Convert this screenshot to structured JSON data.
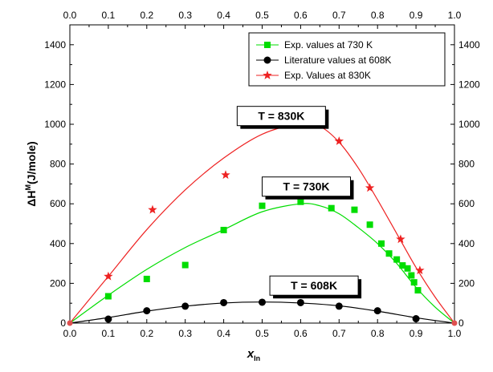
{
  "chart_data": {
    "type": "scatter",
    "title": "",
    "xlabel": "x",
    "xlabel_subscript": "In",
    "ylabel": "ΔH",
    "ylabel_superscript": "M",
    "ylabel_unit": "(J/mole)",
    "xlim": [
      0.0,
      1.0
    ],
    "ylim": [
      0,
      1500
    ],
    "x_ticks": [
      0.0,
      0.1,
      0.2,
      0.3,
      0.4,
      0.5,
      0.6,
      0.7,
      0.8,
      0.9,
      1.0
    ],
    "x_tick_labels": [
      "0.0",
      "0.1",
      "0.2",
      "0.3",
      "0.4",
      "0.5",
      "0.6",
      "0.7",
      "0.8",
      "0.9",
      "1.0"
    ],
    "y_ticks": [
      0,
      200,
      400,
      600,
      800,
      1000,
      1200,
      1400
    ],
    "y_tick_labels": [
      "0",
      "200",
      "400",
      "600",
      "800",
      "1000",
      "1200",
      "1400"
    ],
    "grid": false,
    "legend_position": "top-right",
    "series": [
      {
        "name": "Exp. values at 730 K",
        "color": "#00dd00",
        "marker": "square",
        "points": [
          [
            0.1,
            135
          ],
          [
            0.2,
            222
          ],
          [
            0.3,
            292
          ],
          [
            0.4,
            468
          ],
          [
            0.5,
            590
          ],
          [
            0.6,
            610
          ],
          [
            0.68,
            578
          ],
          [
            0.74,
            570
          ],
          [
            0.78,
            495
          ],
          [
            0.81,
            400
          ],
          [
            0.83,
            350
          ],
          [
            0.85,
            320
          ],
          [
            0.865,
            290
          ],
          [
            0.878,
            275
          ],
          [
            0.888,
            240
          ],
          [
            0.895,
            205
          ],
          [
            0.905,
            165
          ]
        ],
        "fit": [
          [
            0.0,
            0
          ],
          [
            0.1,
            140
          ],
          [
            0.2,
            270
          ],
          [
            0.3,
            380
          ],
          [
            0.4,
            470
          ],
          [
            0.5,
            560
          ],
          [
            0.6,
            600
          ],
          [
            0.65,
            590
          ],
          [
            0.7,
            550
          ],
          [
            0.75,
            480
          ],
          [
            0.8,
            400
          ],
          [
            0.85,
            300
          ],
          [
            0.9,
            180
          ],
          [
            0.95,
            80
          ],
          [
            1.0,
            0
          ]
        ]
      },
      {
        "name": "Literature values at 608K",
        "color": "#000000",
        "marker": "circle",
        "points": [
          [
            0.1,
            20
          ],
          [
            0.2,
            62
          ],
          [
            0.3,
            85
          ],
          [
            0.4,
            103
          ],
          [
            0.5,
            105
          ],
          [
            0.6,
            103
          ],
          [
            0.7,
            85
          ],
          [
            0.8,
            62
          ],
          [
            0.9,
            22
          ]
        ],
        "fit": [
          [
            0.0,
            0
          ],
          [
            0.1,
            28
          ],
          [
            0.2,
            60
          ],
          [
            0.3,
            85
          ],
          [
            0.4,
            101
          ],
          [
            0.5,
            106
          ],
          [
            0.6,
            101
          ],
          [
            0.7,
            87
          ],
          [
            0.8,
            60
          ],
          [
            0.9,
            27
          ],
          [
            1.0,
            0
          ]
        ]
      },
      {
        "name": "Exp. Values at 830K",
        "color": "#ee2222",
        "marker": "star",
        "points": [
          [
            0.1,
            235
          ],
          [
            0.215,
            570
          ],
          [
            0.405,
            745
          ],
          [
            0.6,
            1005
          ],
          [
            0.7,
            915
          ],
          [
            0.78,
            680
          ],
          [
            0.86,
            422
          ],
          [
            0.91,
            265
          ]
        ],
        "fit": [
          [
            0.0,
            0
          ],
          [
            0.1,
            235
          ],
          [
            0.2,
            470
          ],
          [
            0.3,
            670
          ],
          [
            0.4,
            830
          ],
          [
            0.5,
            950
          ],
          [
            0.6,
            1005
          ],
          [
            0.65,
            990
          ],
          [
            0.7,
            910
          ],
          [
            0.75,
            780
          ],
          [
            0.8,
            620
          ],
          [
            0.85,
            450
          ],
          [
            0.9,
            280
          ],
          [
            0.95,
            130
          ],
          [
            1.0,
            0
          ]
        ]
      }
    ],
    "annotations": [
      {
        "text": "T = 830K",
        "x": 0.435,
        "y": 1090
      },
      {
        "text": "T = 730K",
        "x": 0.5,
        "y": 735
      },
      {
        "text": "T = 608K",
        "x": 0.52,
        "y": 237
      }
    ]
  }
}
